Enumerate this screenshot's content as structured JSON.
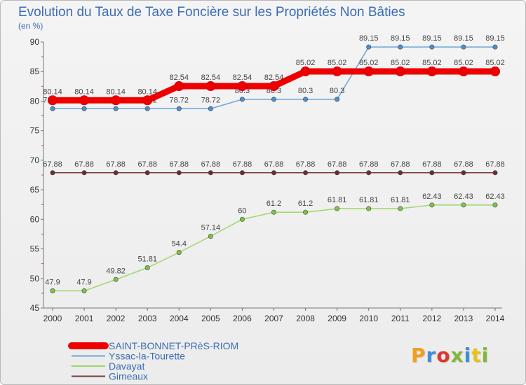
{
  "chart_data": {
    "type": "line",
    "title": "Evolution du Taux de Taxe Foncière sur les Propriétés Non Bâties",
    "unit_label": "(en %)",
    "xlabel": "",
    "ylabel": "",
    "x": [
      "2000",
      "2001",
      "2002",
      "2003",
      "2004",
      "2005",
      "2006",
      "2007",
      "2008",
      "2009",
      "2010",
      "2011",
      "2012",
      "2013",
      "2014"
    ],
    "ylim": [
      45,
      90
    ],
    "yticks": [
      "45",
      "50",
      "55",
      "60",
      "65",
      "70",
      "75",
      "80",
      "85",
      "90"
    ],
    "grid": false,
    "legend_position": "bottom-left",
    "series": [
      {
        "name": "SAINT-BONNET-PRèS-RIOM",
        "color": "#ee0000",
        "values": [
          80.14,
          80.14,
          80.14,
          80.14,
          82.54,
          82.54,
          82.54,
          82.54,
          85.02,
          85.02,
          85.02,
          85.02,
          85.02,
          85.02,
          85.02
        ],
        "labels": [
          "80.14",
          "80.14",
          "80.14",
          "80.14",
          "82.54",
          "82.54",
          "82.54",
          "82.54",
          "85.02",
          "85.02",
          "85.02",
          "85.02",
          "85.02",
          "85.02",
          "85.02"
        ]
      },
      {
        "name": "Yssac-la-Tourette",
        "color": "#6aa6d8",
        "values": [
          78.72,
          78.72,
          78.72,
          78.72,
          78.72,
          78.72,
          80.3,
          80.3,
          80.3,
          80.3,
          89.15,
          89.15,
          89.15,
          89.15,
          89.15
        ],
        "labels": [
          "78.72",
          "78.72",
          "78.72",
          "78.72",
          "78.72",
          "78.72",
          "80.3",
          "80.3",
          "80.3",
          "80.3",
          "89.15",
          "89.15",
          "89.15",
          "89.15",
          "89.15"
        ]
      },
      {
        "name": "Davayat",
        "color": "#9fd66a",
        "values": [
          47.9,
          47.9,
          49.82,
          51.81,
          54.4,
          57.14,
          60,
          61.2,
          61.2,
          61.81,
          61.81,
          61.81,
          62.43,
          62.43,
          62.43
        ],
        "labels": [
          "47.9",
          "47.9",
          "49.82",
          "51.81",
          "54.4",
          "57.14",
          "60",
          "61.2",
          "61.2",
          "61.81",
          "61.81",
          "61.81",
          "62.43",
          "62.43",
          "62.43"
        ]
      },
      {
        "name": "Gimeaux",
        "color": "#7a3a3a",
        "values": [
          67.88,
          67.88,
          67.88,
          67.88,
          67.88,
          67.88,
          67.88,
          67.88,
          67.88,
          67.88,
          67.88,
          67.88,
          67.88,
          67.88,
          67.88
        ],
        "labels": [
          "67.88",
          "67.88",
          "67.88",
          "67.88",
          "67.88",
          "67.88",
          "67.88",
          "67.88",
          "67.88",
          "67.88",
          "67.88",
          "67.88",
          "67.88",
          "67.88",
          "67.88"
        ]
      }
    ]
  },
  "logo": {
    "text": "Proxiti",
    "letter_colors": [
      "#f29e1f",
      "#3c8ed8",
      "#e2332f",
      "#7fb83b",
      "#3c8ed8",
      "#e8c21a",
      "#7fb83b"
    ]
  }
}
